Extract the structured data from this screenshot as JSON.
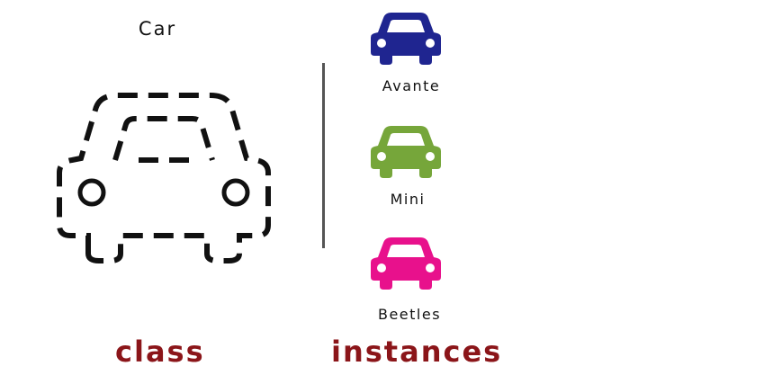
{
  "class": {
    "name": "Car",
    "caption": "class"
  },
  "instances": {
    "caption": "instances",
    "items": [
      {
        "label": "Avante",
        "color": "#1f2590"
      },
      {
        "label": "Mini",
        "color": "#76a63a"
      },
      {
        "label": "Beetles",
        "color": "#e8118c"
      }
    ]
  },
  "colors": {
    "caption": "#8b1519",
    "divider": "#555555",
    "outline": "#111111"
  }
}
